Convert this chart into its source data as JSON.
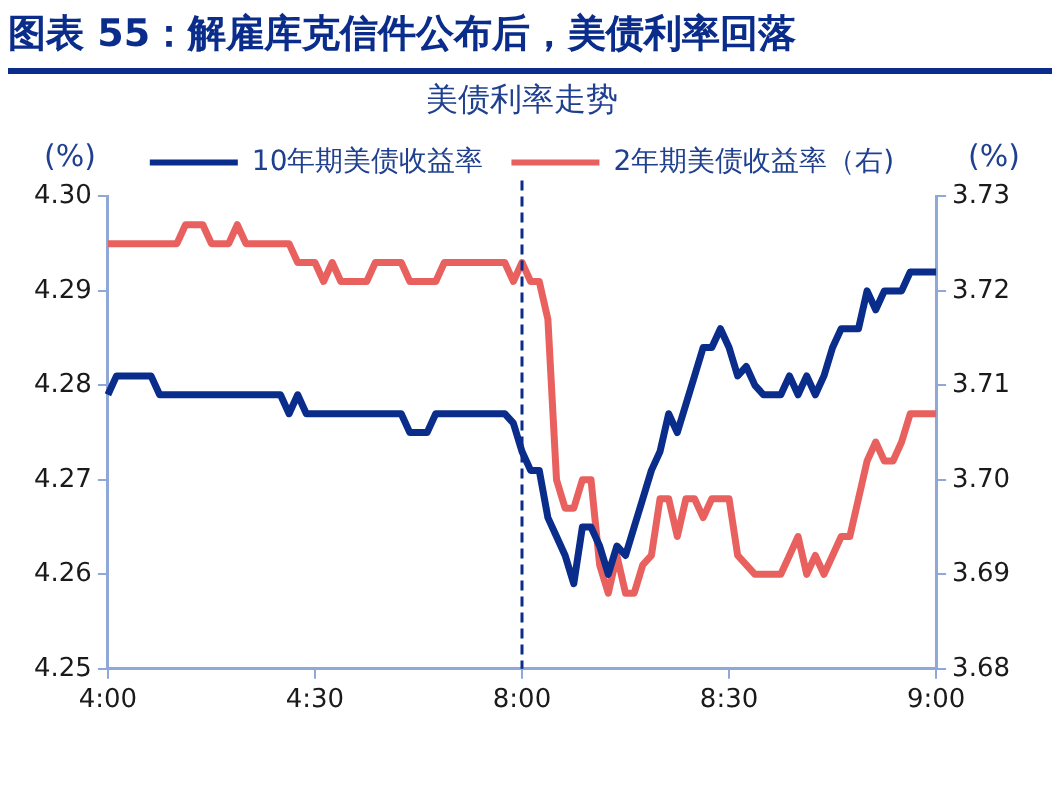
{
  "chart_data": {
    "type": "line",
    "title": "图表 55：解雇库克信件公布后，美债利率回落",
    "subtitle": "美债利率走势",
    "ylabel": "(%)",
    "y2label": "(%)",
    "categories": [
      "4:00",
      null,
      null,
      null,
      null,
      null,
      null,
      null,
      null,
      null,
      null,
      null,
      null,
      null,
      null,
      null,
      null,
      null,
      null,
      null,
      null,
      null,
      null,
      null,
      "4:30",
      null,
      null,
      null,
      null,
      null,
      null,
      null,
      null,
      null,
      null,
      null,
      null,
      null,
      null,
      null,
      null,
      null,
      null,
      null,
      null,
      null,
      null,
      null,
      "8:00",
      null,
      null,
      null,
      null,
      null,
      null,
      null,
      null,
      null,
      null,
      null,
      null,
      null,
      null,
      null,
      null,
      null,
      null,
      null,
      null,
      null,
      null,
      null,
      "8:30",
      null,
      null,
      null,
      null,
      null,
      null,
      null,
      null,
      null,
      null,
      null,
      null,
      null,
      null,
      null,
      null,
      null,
      null,
      null,
      null,
      null,
      null,
      null,
      "9:00"
    ],
    "series": [
      {
        "name": "10年期美债收益率",
        "color": "#0a2d8c",
        "values": [
          4.279,
          4.281,
          4.281,
          4.281,
          4.281,
          4.281,
          4.279,
          4.279,
          4.279,
          4.279,
          4.279,
          4.279,
          4.279,
          4.279,
          4.279,
          4.279,
          4.279,
          4.279,
          4.279,
          4.279,
          4.279,
          4.277,
          4.279,
          4.277,
          4.277,
          4.277,
          4.277,
          4.277,
          4.277,
          4.277,
          4.277,
          4.277,
          4.277,
          4.277,
          4.277,
          4.275,
          4.275,
          4.275,
          4.277,
          4.277,
          4.277,
          4.277,
          4.277,
          4.277,
          4.277,
          4.277,
          4.277,
          4.276,
          4.273,
          4.271,
          4.271,
          4.266,
          4.264,
          4.262,
          4.259,
          4.265,
          4.265,
          4.263,
          4.26,
          4.263,
          4.262,
          4.265,
          4.268,
          4.271,
          4.273,
          4.277,
          4.275,
          4.278,
          4.281,
          4.284,
          4.284,
          4.286,
          4.284,
          4.281,
          4.282,
          4.28,
          4.279,
          4.279,
          4.279,
          4.281,
          4.279,
          4.281,
          4.279,
          4.281,
          4.284,
          4.286,
          4.286,
          4.286,
          4.29,
          4.288,
          4.29,
          4.29,
          4.29,
          4.292,
          4.292,
          4.292,
          4.292
        ]
      },
      {
        "name": "2年期美债收益率（右)",
        "color": "#e8615f",
        "axis": "y2",
        "values": [
          3.725,
          3.725,
          3.725,
          3.725,
          3.725,
          3.725,
          3.725,
          3.725,
          3.725,
          3.727,
          3.727,
          3.727,
          3.725,
          3.725,
          3.725,
          3.727,
          3.725,
          3.725,
          3.725,
          3.725,
          3.725,
          3.725,
          3.723,
          3.723,
          3.723,
          3.721,
          3.723,
          3.721,
          3.721,
          3.721,
          3.721,
          3.723,
          3.723,
          3.723,
          3.723,
          3.721,
          3.721,
          3.721,
          3.721,
          3.723,
          3.723,
          3.723,
          3.723,
          3.723,
          3.723,
          3.723,
          3.723,
          3.721,
          3.723,
          3.721,
          3.721,
          3.717,
          3.7,
          3.697,
          3.697,
          3.7,
          3.7,
          3.691,
          3.688,
          3.692,
          3.688,
          3.688,
          3.691,
          3.692,
          3.698,
          3.698,
          3.694,
          3.698,
          3.698,
          3.696,
          3.698,
          3.698,
          3.698,
          3.692,
          3.691,
          3.69,
          3.69,
          3.69,
          3.69,
          3.692,
          3.694,
          3.69,
          3.692,
          3.69,
          3.692,
          3.694,
          3.694,
          3.698,
          3.702,
          3.704,
          3.702,
          3.702,
          3.704,
          3.707,
          3.707,
          3.707,
          3.707
        ]
      }
    ],
    "ylim": [
      4.25,
      4.3
    ],
    "yticks": [
      4.25,
      4.26,
      4.27,
      4.28,
      4.29,
      {
        "value": 4.3,
        "label": "4.30"
      }
    ],
    "y2lim": [
      3.68,
      3.73
    ],
    "y2ticks": [
      3.68,
      3.69,
      {
        "value": 3.7,
        "label": "3.70"
      },
      3.71,
      3.72,
      3.73
    ],
    "ref_lines": [
      {
        "axis": "x",
        "value": "8:00",
        "color": "#0a2d8c",
        "line_style": "dashed"
      }
    ],
    "grid": false,
    "legend": "top",
    "marker": "none",
    "line_style": "solid"
  }
}
